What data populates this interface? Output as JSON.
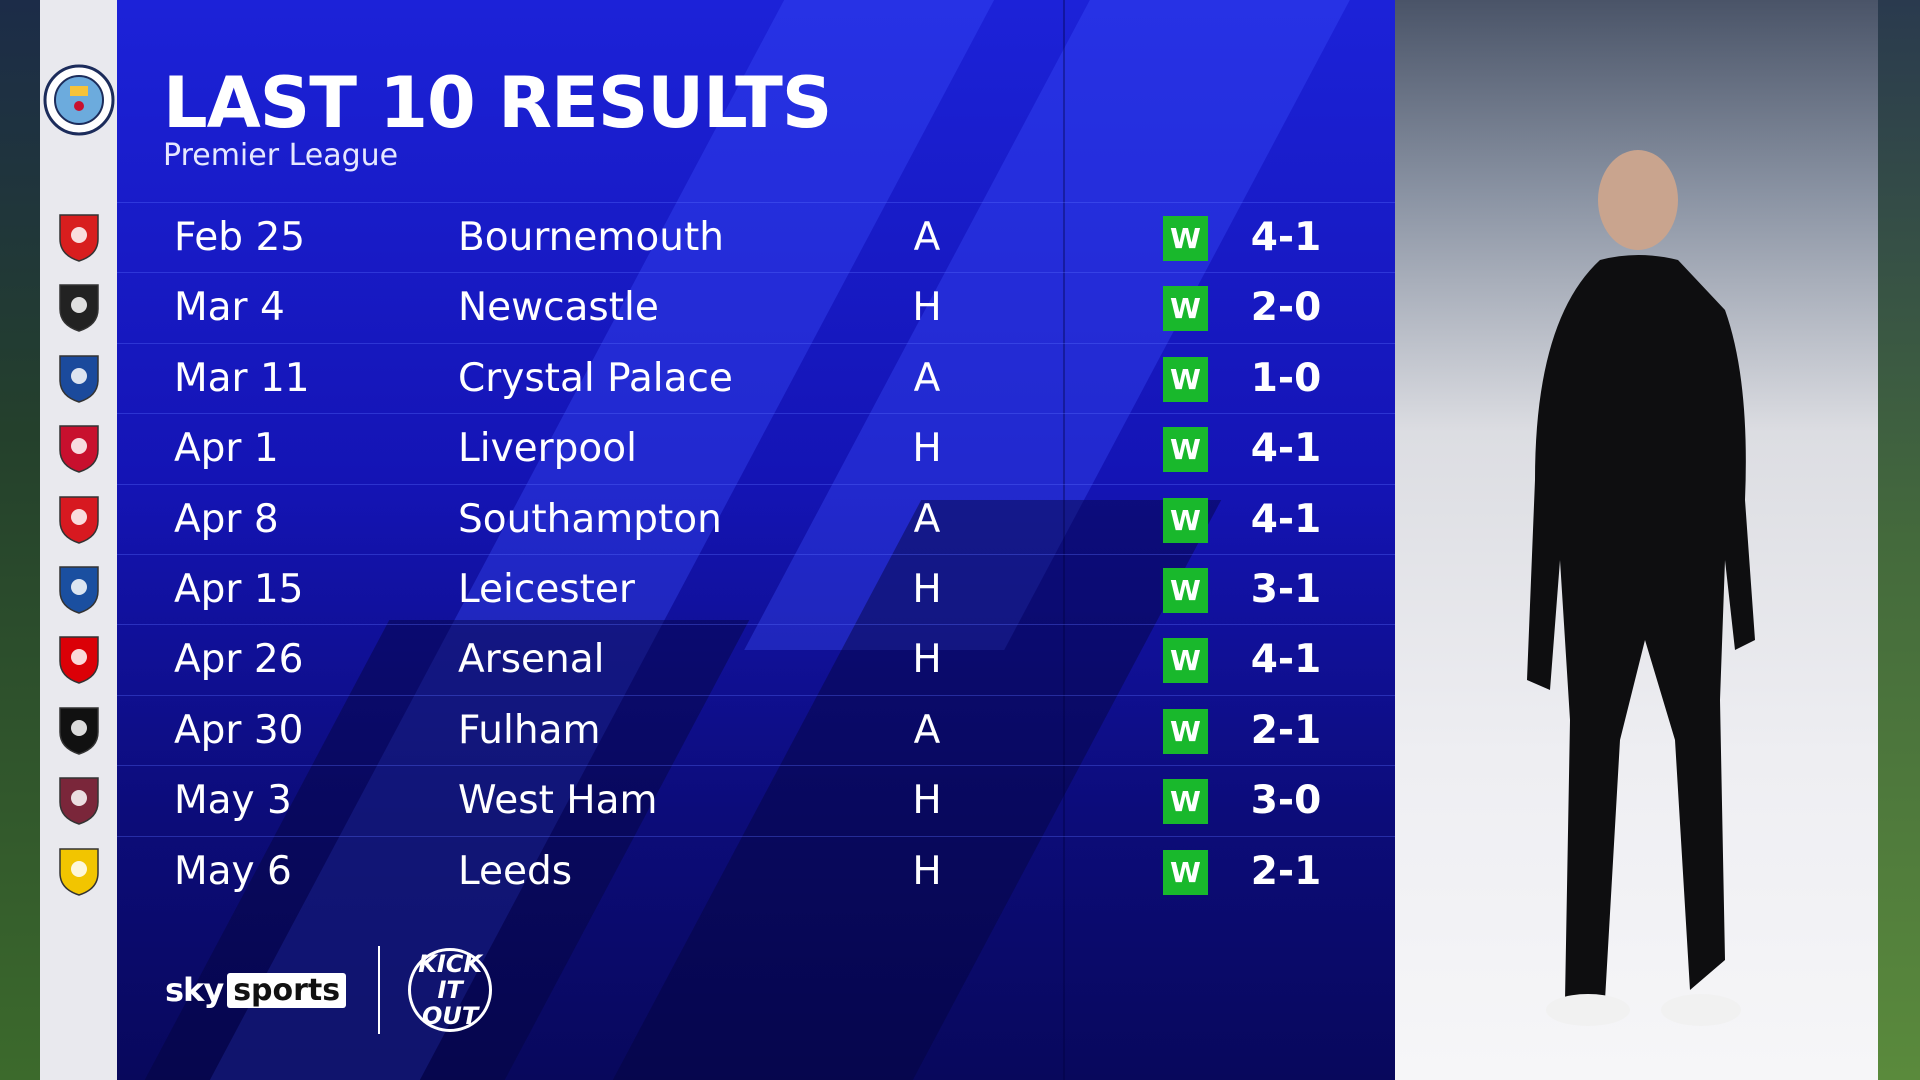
{
  "header": {
    "title": "LAST 10 RESULTS",
    "subtitle": "Premier League"
  },
  "team_crest": "manchester-city-crest",
  "results": [
    {
      "date": "Feb 25",
      "opponent": "Bournemouth",
      "venue": "A",
      "result": "W",
      "score": "4-1",
      "crest": "bournemouth-crest",
      "color": "#d81e1e"
    },
    {
      "date": "Mar 4",
      "opponent": "Newcastle",
      "venue": "H",
      "result": "W",
      "score": "2-0",
      "crest": "newcastle-crest",
      "color": "#222222"
    },
    {
      "date": "Mar 11",
      "opponent": "Crystal Palace",
      "venue": "A",
      "result": "W",
      "score": "1-0",
      "crest": "crystal-palace-crest",
      "color": "#1b4a9c"
    },
    {
      "date": "Apr 1",
      "opponent": "Liverpool",
      "venue": "H",
      "result": "W",
      "score": "4-1",
      "crest": "liverpool-crest",
      "color": "#c8102e"
    },
    {
      "date": "Apr 8",
      "opponent": "Southampton",
      "venue": "A",
      "result": "W",
      "score": "4-1",
      "crest": "southampton-crest",
      "color": "#d71920"
    },
    {
      "date": "Apr 15",
      "opponent": "Leicester",
      "venue": "H",
      "result": "W",
      "score": "3-1",
      "crest": "leicester-crest",
      "color": "#1a4fa0"
    },
    {
      "date": "Apr 26",
      "opponent": "Arsenal",
      "venue": "H",
      "result": "W",
      "score": "4-1",
      "crest": "arsenal-crest",
      "color": "#db0007"
    },
    {
      "date": "Apr 30",
      "opponent": "Fulham",
      "venue": "A",
      "result": "W",
      "score": "2-1",
      "crest": "fulham-crest",
      "color": "#111111"
    },
    {
      "date": "May 3",
      "opponent": "West Ham",
      "venue": "H",
      "result": "W",
      "score": "3-0",
      "crest": "west-ham-crest",
      "color": "#7a263a"
    },
    {
      "date": "May 6",
      "opponent": "Leeds",
      "venue": "H",
      "result": "W",
      "score": "2-1",
      "crest": "leeds-crest",
      "color": "#f2c500"
    }
  ],
  "colors": {
    "win": "#19b82c",
    "panel": "#1414b4"
  },
  "footer": {
    "sky": "sky",
    "sports": "sports",
    "kick_it_out": "KICK IT OUT"
  }
}
